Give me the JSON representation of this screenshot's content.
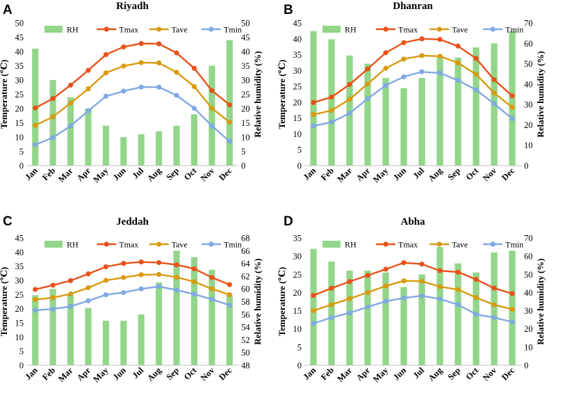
{
  "colors": {
    "RH": "#93d68a",
    "Tmax": "#e8521a",
    "Tave": "#d99a0f",
    "Tmin": "#80a9e3"
  },
  "chart_data": [
    {
      "type": "bar+line",
      "panel": "A",
      "title": "Riyadh",
      "categories": [
        "Jan",
        "Feb",
        "Mar",
        "Apr",
        "May",
        "Jun",
        "Jul",
        "Aug",
        "Sep",
        "Oct",
        "Nov",
        "Dec"
      ],
      "ylabel": "Temperature (℃)",
      "y2label": "Relative humidity (%)",
      "ylim": [
        0,
        50
      ],
      "yticks": [
        0,
        5,
        10,
        15,
        20,
        25,
        30,
        35,
        40,
        45,
        50
      ],
      "y2lim": [
        0,
        50
      ],
      "y2ticks": [
        0,
        5,
        10,
        15,
        20,
        25,
        30,
        35,
        40,
        45,
        50
      ],
      "legend": [
        "RH",
        "Tmax",
        "Tave",
        "Tmin"
      ],
      "series": [
        {
          "name": "RH",
          "kind": "bar",
          "axis": "right",
          "values": [
            41,
            30,
            24,
            20,
            14,
            10,
            11,
            12,
            14,
            18,
            35,
            44
          ]
        },
        {
          "name": "Tmax",
          "kind": "line",
          "axis": "left",
          "values": [
            20.2,
            23.5,
            28.2,
            33.4,
            38.9,
            41.6,
            42.8,
            42.7,
            39.5,
            34.1,
            26.3,
            21.3
          ]
        },
        {
          "name": "Tave",
          "kind": "line",
          "axis": "left",
          "values": [
            14.1,
            17.1,
            21.9,
            26.9,
            32.5,
            34.9,
            36.1,
            36.0,
            32.7,
            27.7,
            20.1,
            15.2
          ]
        },
        {
          "name": "Tmin",
          "kind": "line",
          "axis": "left",
          "values": [
            7.3,
            9.8,
            13.9,
            19.2,
            24.3,
            26.1,
            27.5,
            27.5,
            24.6,
            20.1,
            13.9,
            8.5
          ]
        }
      ]
    },
    {
      "type": "bar+line",
      "panel": "B",
      "title": "Dhanran",
      "categories": [
        "Jan",
        "Feb",
        "Mar",
        "Apr",
        "May",
        "Jun",
        "Jul",
        "Aug",
        "Sep",
        "Oct",
        "Nov",
        "Dec"
      ],
      "ylabel": "Temperature (℃)",
      "y2label": "Relative humidity (%)",
      "ylim": [
        0,
        45
      ],
      "yticks": [
        0,
        5,
        10,
        15,
        20,
        25,
        30,
        35,
        40,
        45
      ],
      "y2lim": [
        0,
        70
      ],
      "y2ticks": [
        0,
        10,
        20,
        30,
        40,
        50,
        60,
        70
      ],
      "legend": [
        "RH",
        "Tmax",
        "Tave",
        "Tmin"
      ],
      "series": [
        {
          "name": "RH",
          "kind": "bar",
          "axis": "right",
          "values": [
            66,
            62,
            54,
            50,
            43,
            38,
            43,
            53,
            53,
            58,
            60,
            66
          ]
        },
        {
          "name": "Tmax",
          "kind": "line",
          "axis": "left",
          "values": [
            19.9,
            21.6,
            25.6,
            30.5,
            35.6,
            38.8,
            40.0,
            39.8,
            37.7,
            33.8,
            27.1,
            22.0
          ]
        },
        {
          "name": "Tave",
          "kind": "line",
          "axis": "left",
          "values": [
            16.1,
            17.4,
            20.9,
            25.8,
            30.7,
            33.6,
            34.7,
            34.5,
            32.4,
            28.8,
            22.9,
            18.4
          ]
        },
        {
          "name": "Tmin",
          "kind": "line",
          "axis": "left",
          "values": [
            12.5,
            13.7,
            16.5,
            21.1,
            25.3,
            28.0,
            29.6,
            29.2,
            26.9,
            23.9,
            19.5,
            14.8
          ]
        }
      ]
    },
    {
      "type": "bar+line",
      "panel": "C",
      "title": "Jeddah",
      "categories": [
        "Jan",
        "Feb",
        "Mar",
        "Apr",
        "May",
        "Jun",
        "Jul",
        "Aug",
        "Sep",
        "Oct",
        "Nov",
        "Dec"
      ],
      "ylabel": "Temperature (℃)",
      "y2label": "Relative humidity (%)",
      "ylim": [
        0,
        45
      ],
      "yticks": [
        0,
        5,
        10,
        15,
        20,
        25,
        30,
        35,
        40,
        45
      ],
      "y2lim": [
        48,
        68
      ],
      "y2ticks": [
        48,
        50,
        52,
        54,
        56,
        58,
        60,
        62,
        64,
        66,
        68
      ],
      "legend": [
        "RH",
        "Tmax",
        "Tave",
        "Tmin"
      ],
      "series": [
        {
          "name": "RH",
          "kind": "bar",
          "axis": "right",
          "values": [
            59,
            60,
            59,
            57,
            55,
            55,
            56,
            61,
            66,
            65,
            63,
            59
          ]
        },
        {
          "name": "Tmax",
          "kind": "line",
          "axis": "left",
          "values": [
            26.8,
            28.3,
            29.9,
            32.3,
            34.8,
            36.0,
            36.5,
            36.3,
            35.5,
            34.1,
            31.0,
            28.5
          ]
        },
        {
          "name": "Tave",
          "kind": "line",
          "axis": "left",
          "values": [
            23.2,
            23.9,
            25.2,
            27.4,
            30.0,
            31.0,
            32.0,
            32.1,
            31.1,
            29.5,
            27.0,
            24.9
          ]
        },
        {
          "name": "Tmin",
          "kind": "line",
          "axis": "left",
          "values": [
            19.4,
            19.9,
            20.8,
            22.8,
            24.9,
            25.7,
            27.0,
            27.8,
            26.6,
            25.1,
            23.3,
            21.2
          ]
        }
      ]
    },
    {
      "type": "bar+line",
      "panel": "D",
      "title": "Abha",
      "categories": [
        "Jan",
        "Feb",
        "Mar",
        "Apr",
        "May",
        "Jun",
        "Jul",
        "Aug",
        "Sep",
        "Oct",
        "Nov",
        "Dec"
      ],
      "ylabel": "Temperature (℃)",
      "y2label": "Relative humidity (%)",
      "ylim": [
        0,
        35
      ],
      "yticks": [
        0,
        5,
        10,
        15,
        20,
        25,
        30,
        35
      ],
      "y2lim": [
        0,
        70
      ],
      "y2ticks": [
        0,
        10,
        20,
        30,
        40,
        50,
        60,
        70
      ],
      "legend": [
        "RH",
        "Tmax",
        "Tave",
        "Tmin"
      ],
      "series": [
        {
          "name": "RH",
          "kind": "bar",
          "axis": "right",
          "values": [
            64,
            57,
            52,
            52,
            51,
            43,
            50,
            65,
            56,
            51,
            62,
            63
          ]
        },
        {
          "name": "Tmax",
          "kind": "line",
          "axis": "left",
          "values": [
            19.2,
            21.2,
            23.0,
            24.7,
            26.4,
            28.2,
            27.8,
            26.0,
            25.6,
            23.6,
            21.2,
            19.7
          ]
        },
        {
          "name": "Tave",
          "kind": "line",
          "axis": "left",
          "values": [
            15.0,
            16.7,
            18.3,
            20.0,
            21.8,
            23.2,
            23.1,
            21.6,
            20.8,
            18.6,
            16.6,
            15.4
          ]
        },
        {
          "name": "Tmin",
          "kind": "line",
          "axis": "left",
          "values": [
            11.5,
            13.1,
            14.4,
            16.0,
            17.6,
            18.5,
            19.1,
            18.2,
            16.7,
            14.0,
            13.1,
            11.9
          ]
        }
      ]
    }
  ]
}
